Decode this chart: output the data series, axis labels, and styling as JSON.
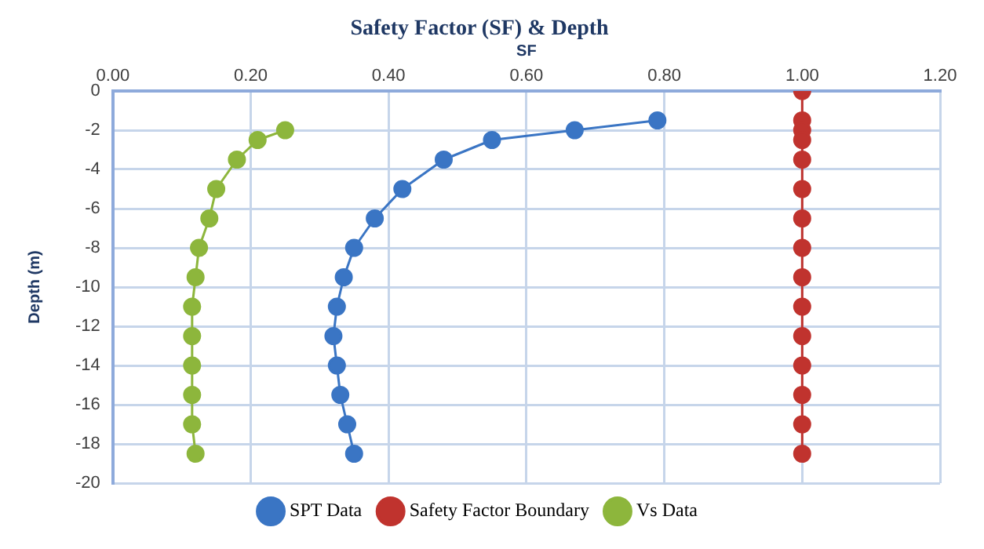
{
  "chart_data": {
    "type": "line",
    "title": "Safety Factor (SF) & Depth",
    "xlabel": "SF",
    "ylabel": "Depth (m)",
    "xlim": [
      0,
      1.2
    ],
    "xticks": [
      {
        "value": 0,
        "label": "0.00"
      },
      {
        "value": 0.2,
        "label": "0.20"
      },
      {
        "value": 0.4,
        "label": "0.40"
      },
      {
        "value": 0.6,
        "label": "0.60"
      },
      {
        "value": 0.8,
        "label": "0.80"
      },
      {
        "value": 1,
        "label": "1.00"
      },
      {
        "value": 1.2,
        "label": "1.20"
      }
    ],
    "ylim": [
      -20,
      0
    ],
    "yticks": [
      -20,
      -18,
      -16,
      -14,
      -12,
      -10,
      -8,
      -6,
      -4,
      -2,
      0
    ],
    "grid": true,
    "legend": "bottom",
    "marker": "circle",
    "line_style": "solid",
    "series": [
      {
        "name": "SPT Data",
        "color": "#3a75c4",
        "x": [
          0.79,
          0.67,
          0.55,
          0.48,
          0.42,
          0.38,
          0.35,
          0.335,
          0.325,
          0.32,
          0.325,
          0.33,
          0.34,
          0.35
        ],
        "values": [
          -1.5,
          -2,
          -2.5,
          -3.5,
          -5,
          -6.5,
          -8,
          -9.5,
          -11,
          -12.5,
          -14,
          -15.5,
          -17,
          -18.5
        ]
      },
      {
        "name": "Safety Factor Boundary",
        "color": "#c0332e",
        "x": [
          1,
          1,
          1,
          1,
          1,
          1,
          1,
          1,
          1,
          1,
          1,
          1,
          1,
          1,
          1
        ],
        "values": [
          0,
          -1.5,
          -2,
          -2.5,
          -3.5,
          -5,
          -6.5,
          -8,
          -9.5,
          -11,
          -12.5,
          -14,
          -15.5,
          -17,
          -18.5
        ]
      },
      {
        "name": "Vs Data",
        "color": "#8db63c",
        "x": [
          0.25,
          0.21,
          0.18,
          0.15,
          0.14,
          0.125,
          0.12,
          0.115,
          0.115,
          0.115,
          0.115,
          0.115,
          0.12
        ],
        "values": [
          -2,
          -2.5,
          -3.5,
          -5,
          -6.5,
          -8,
          -9.5,
          -11,
          -12.5,
          -14,
          -15.5,
          -17,
          -18.5
        ]
      }
    ]
  }
}
